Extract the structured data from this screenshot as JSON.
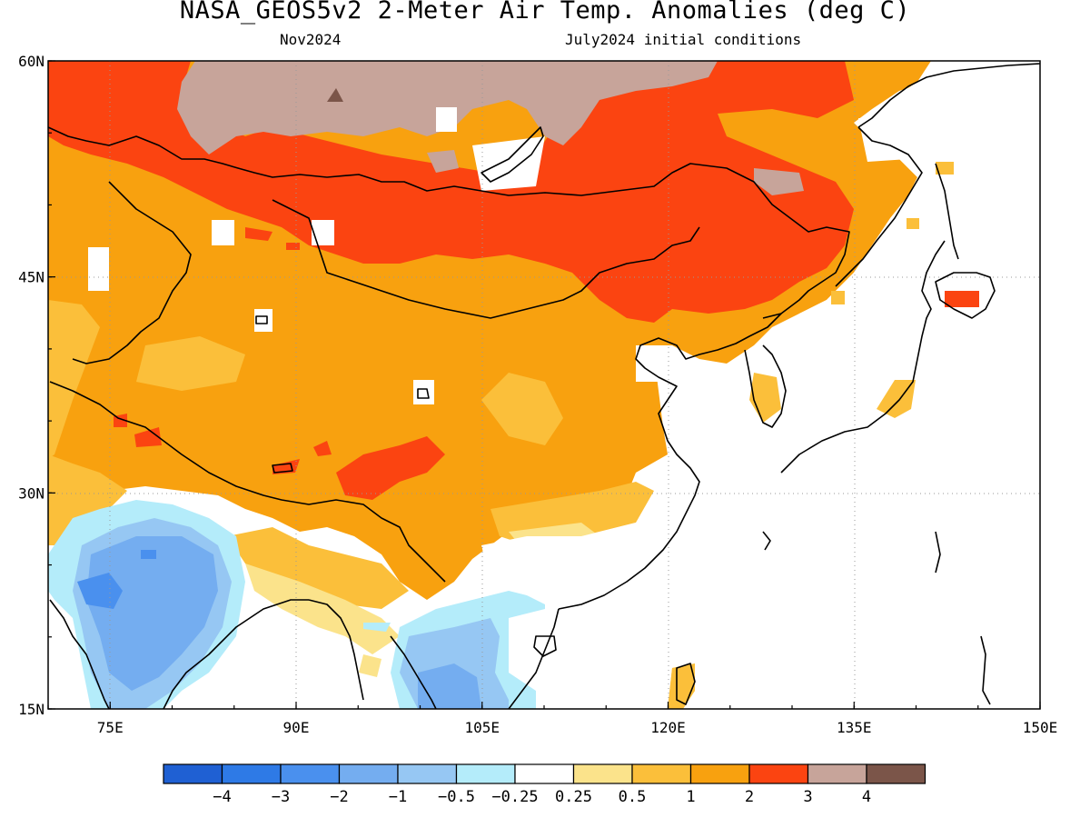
{
  "header": {
    "title": "NASA_GEOS5v2 2-Meter Air Temp. Anomalies (deg C)",
    "valid_month": "Nov2024",
    "init": "July2024 initial conditions"
  },
  "map": {
    "projection": "lat-lon",
    "lon_range": [
      70,
      150
    ],
    "lat_range": [
      15,
      60
    ],
    "lon_ticks": [
      {
        "value": 75,
        "label": "75E"
      },
      {
        "value": 90,
        "label": "90E"
      },
      {
        "value": 105,
        "label": "105E"
      },
      {
        "value": 120,
        "label": "120E"
      },
      {
        "value": 135,
        "label": "135E"
      },
      {
        "value": 150,
        "label": "150E"
      }
    ],
    "lat_ticks": [
      {
        "value": 60,
        "label": "60N"
      },
      {
        "value": 45,
        "label": "45N"
      },
      {
        "value": 30,
        "label": "30N"
      },
      {
        "value": 15,
        "label": "15N"
      }
    ],
    "grid": true,
    "background_ocean": "#ffffff"
  },
  "colorbar": {
    "colors": [
      "#1f60d3",
      "#2e7ae6",
      "#4a90ee",
      "#74adf0",
      "#96c7f3",
      "#b4ecfa",
      "#ffffff",
      "#fbe38b",
      "#fbbf3a",
      "#f8a10f",
      "#fb4411",
      "#c7a49a",
      "#7b5549"
    ],
    "labels": [
      "−4",
      "−3",
      "−2",
      "−1",
      "−0.5",
      "−0.25",
      "0.25",
      "0.5",
      "1",
      "2",
      "3",
      "4"
    ]
  }
}
